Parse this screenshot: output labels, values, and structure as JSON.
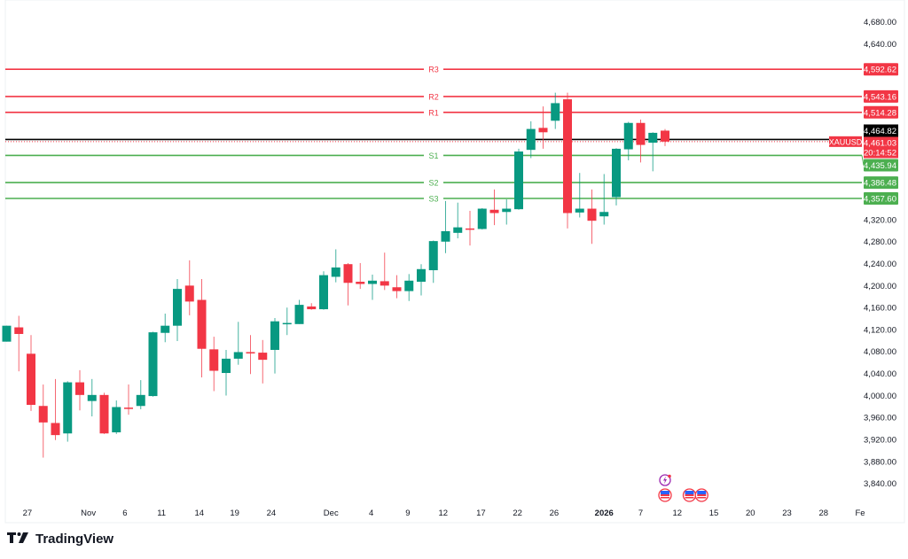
{
  "chart_data": {
    "type": "candlestick",
    "symbol": "XAUUSD",
    "last_price": "4,461.03",
    "countdown": "20:14:52",
    "reference_price": "4,464.82",
    "reference_value": 4464.82,
    "last_value": 4461.03,
    "ylim": [
      3820,
      4700
    ],
    "y_ticks": [
      4680,
      4640,
      4600,
      4560,
      4520,
      4480,
      4440,
      4400,
      4360,
      4320,
      4280,
      4240,
      4200,
      4160,
      4120,
      4080,
      4040,
      4000,
      3960,
      3920,
      3880,
      3840
    ],
    "colors": {
      "up": "#089981",
      "down": "#f23645",
      "resistance": "#f23645",
      "support": "#4caf50",
      "reference": "#000000"
    },
    "candles": [
      [
        4097,
        4126,
        4097,
        4126
      ],
      [
        4123,
        4144,
        4043,
        4111
      ],
      [
        4075,
        4109,
        3971,
        3982
      ],
      [
        3980,
        4019,
        3886,
        3950
      ],
      [
        3949,
        4029,
        3918,
        3927
      ],
      [
        3930,
        4025,
        3915,
        4023
      ],
      [
        4023,
        4045,
        3972,
        4000
      ],
      [
        3989,
        4029,
        3961,
        4000
      ],
      [
        4000,
        4004,
        3929,
        3930
      ],
      [
        3932,
        3990,
        3929,
        3978
      ],
      [
        3977,
        4019,
        3964,
        3975
      ],
      [
        3980,
        4027,
        3974,
        4000
      ],
      [
        3998,
        4115,
        3997,
        4114
      ],
      [
        4113,
        4148,
        4096,
        4126
      ],
      [
        4126,
        4211,
        4098,
        4193
      ],
      [
        4199,
        4245,
        4145,
        4170
      ],
      [
        4173,
        4211,
        4032,
        4084
      ],
      [
        4083,
        4106,
        4007,
        4044
      ],
      [
        4040,
        4082,
        3999,
        4066
      ],
      [
        4066,
        4133,
        4055,
        4078
      ],
      [
        4078,
        4109,
        4038,
        4076
      ],
      [
        4077,
        4100,
        4021,
        4064
      ],
      [
        4082,
        4140,
        4039,
        4134
      ],
      [
        4130,
        4159,
        4109,
        4131
      ],
      [
        4129,
        4173,
        4129,
        4164
      ],
      [
        4161,
        4167,
        4155,
        4156
      ],
      [
        4156,
        4225,
        4155,
        4218
      ],
      [
        4215,
        4265,
        4205,
        4232
      ],
      [
        4238,
        4240,
        4163,
        4204
      ],
      [
        4206,
        4240,
        4193,
        4202
      ],
      [
        4202,
        4219,
        4173,
        4208
      ],
      [
        4207,
        4259,
        4191,
        4199
      ],
      [
        4196,
        4218,
        4176,
        4189
      ],
      [
        4189,
        4220,
        4171,
        4208
      ],
      [
        4206,
        4238,
        4181,
        4229
      ],
      [
        4227,
        4281,
        4204,
        4280
      ],
      [
        4279,
        4353,
        4258,
        4298
      ],
      [
        4295,
        4350,
        4285,
        4305
      ],
      [
        4303,
        4335,
        4272,
        4301
      ],
      [
        4302,
        4340,
        4301,
        4339
      ],
      [
        4337,
        4374,
        4309,
        4331
      ],
      [
        4333,
        4356,
        4310,
        4339
      ],
      [
        4338,
        4448,
        4337,
        4443
      ],
      [
        4446,
        4498,
        4431,
        4484
      ],
      [
        4486,
        4525,
        4448,
        4478
      ],
      [
        4499,
        4550,
        4484,
        4531
      ],
      [
        4538,
        4550,
        4303,
        4331
      ],
      [
        4332,
        4404,
        4323,
        4339
      ],
      [
        4339,
        4374,
        4275,
        4317
      ],
      [
        4325,
        4402,
        4310,
        4333
      ],
      [
        4360,
        4449,
        4345,
        4448
      ],
      [
        4447,
        4497,
        4427,
        4495
      ],
      [
        4495,
        4501,
        4423,
        4455
      ],
      [
        4459,
        4478,
        4407,
        4477
      ],
      [
        4481,
        4484,
        4453,
        4461.03
      ]
    ],
    "candle_format": "open, high, low, close",
    "levels": [
      {
        "name": "R3",
        "value": 4592.62,
        "label": "4,592.62",
        "kind": "resistance"
      },
      {
        "name": "R2",
        "value": 4543.16,
        "label": "4,543.16",
        "kind": "resistance"
      },
      {
        "name": "R1",
        "value": 4514.28,
        "label": "4,514.28",
        "kind": "resistance"
      },
      {
        "name": "S1",
        "value": 4435.94,
        "label": "4,435.94",
        "kind": "support"
      },
      {
        "name": "S2",
        "value": 4386.48,
        "label": "4,386.48",
        "kind": "support"
      },
      {
        "name": "S3",
        "value": 4357.6,
        "label": "4,357.60",
        "kind": "support"
      }
    ],
    "x_labels": [
      {
        "text": "27",
        "index": 1.7
      },
      {
        "text": "Nov",
        "index": 6.7
      },
      {
        "text": "6",
        "index": 9.7
      },
      {
        "text": "11",
        "index": 12.7
      },
      {
        "text": "14",
        "index": 15.8
      },
      {
        "text": "19",
        "index": 18.7
      },
      {
        "text": "24",
        "index": 21.7
      },
      {
        "text": "Dec",
        "index": 26.6
      },
      {
        "text": "4",
        "index": 29.9
      },
      {
        "text": "9",
        "index": 32.9
      },
      {
        "text": "12",
        "index": 35.8
      },
      {
        "text": "17",
        "index": 38.9
      },
      {
        "text": "22",
        "index": 41.9
      },
      {
        "text": "26",
        "index": 44.9
      },
      {
        "text": "2026",
        "index": 49,
        "bold": true
      },
      {
        "text": "7",
        "index": 52
      },
      {
        "text": "12",
        "index": 55
      },
      {
        "text": "15",
        "index": 58
      },
      {
        "text": "20",
        "index": 61
      },
      {
        "text": "23",
        "index": 64
      },
      {
        "text": "28",
        "index": 67
      },
      {
        "text": "Fe",
        "index": 70
      }
    ],
    "events": [
      {
        "type": "lightning",
        "index": 54
      },
      {
        "type": "us-flag",
        "index": 54
      },
      {
        "type": "us-flag",
        "index": 56
      },
      {
        "type": "us-flag",
        "index": 57
      }
    ]
  },
  "branding": {
    "name": "TradingView",
    "logo_mark": "TV"
  }
}
